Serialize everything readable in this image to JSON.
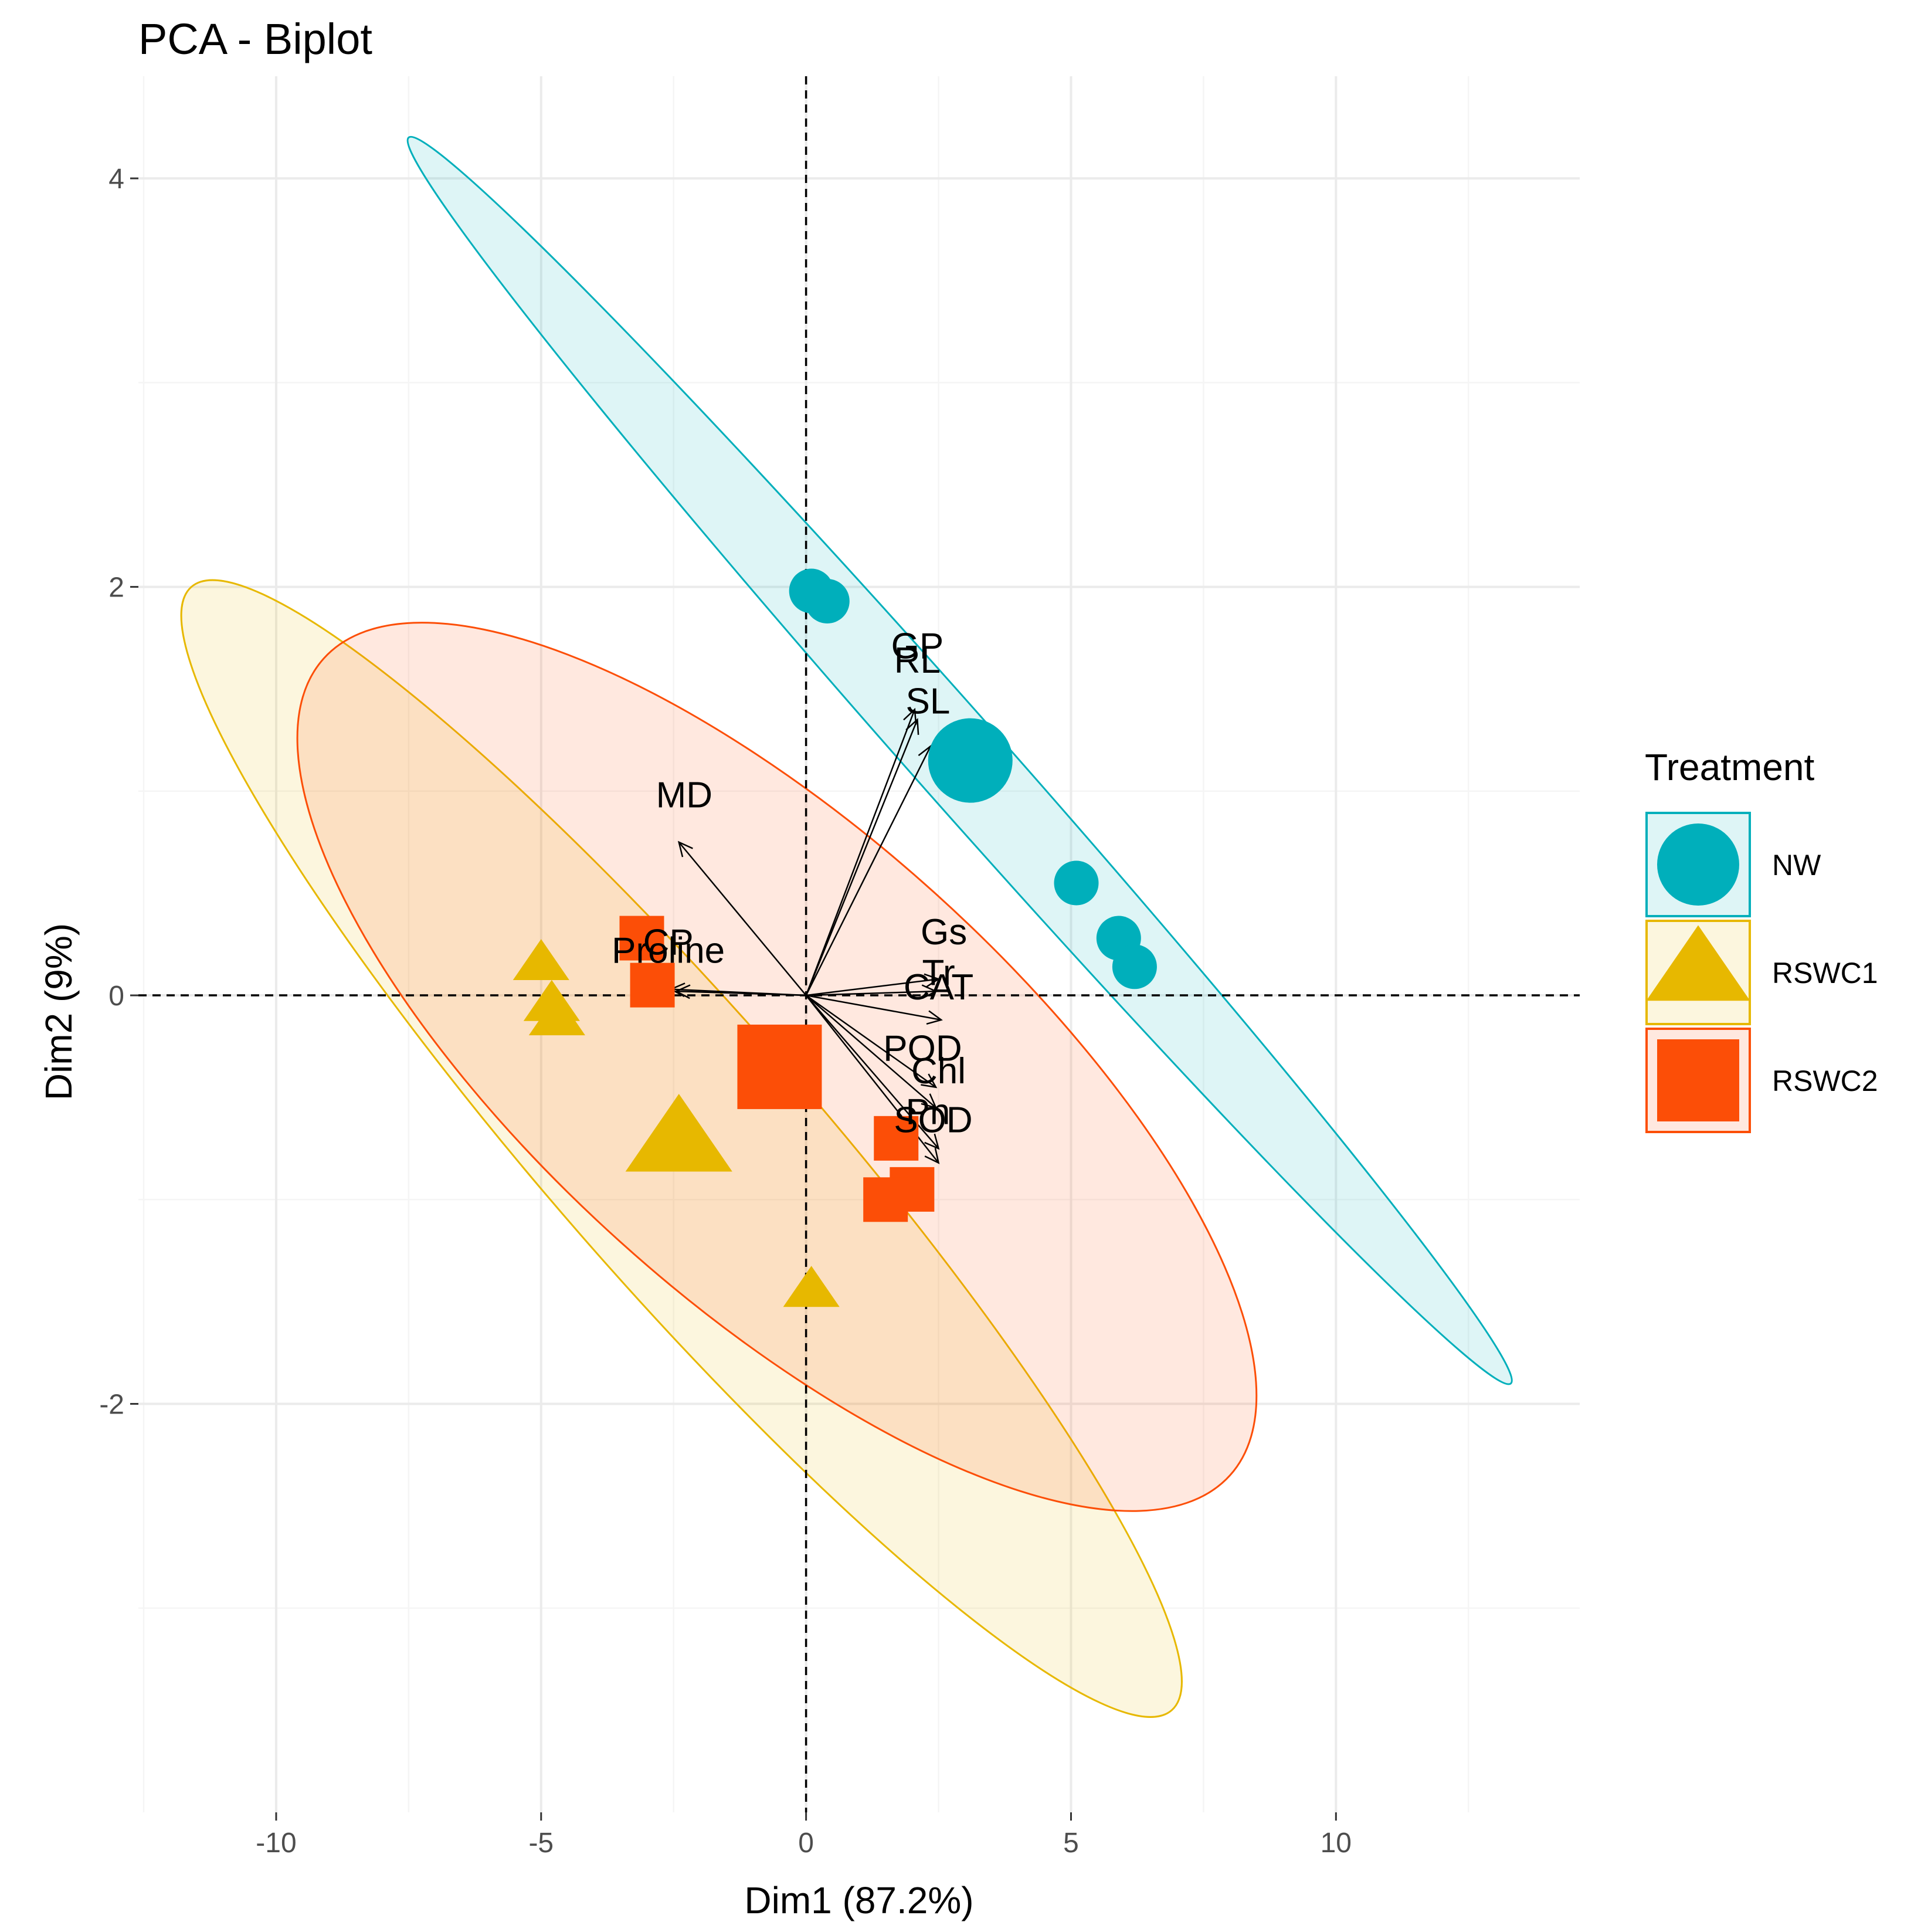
{
  "chart_data": {
    "type": "scatter",
    "title": "PCA - Biplot",
    "xlabel": "Dim1 (87.2%)",
    "ylabel": "Dim2 (9%)",
    "xlim": [
      -12.6,
      14.6
    ],
    "ylim": [
      -4.0,
      4.5
    ],
    "xticks": [
      -10,
      -5,
      0,
      5,
      10
    ],
    "xtick_labels": [
      "-10",
      "-5",
      "0",
      "5",
      "10"
    ],
    "yticks": [
      -2,
      0,
      2,
      4
    ],
    "ytick_labels": [
      "-2",
      "0",
      "2",
      "4"
    ],
    "grid": true,
    "legend": {
      "title": "Treatment",
      "position": "right",
      "entries": [
        "NW",
        "RSWC1",
        "RSWC2"
      ]
    },
    "groups": [
      {
        "name": "NW",
        "shape": "circle",
        "color": "#00AFBB",
        "points": [
          [
            0.1,
            1.98
          ],
          [
            0.4,
            1.93
          ],
          [
            5.1,
            0.55
          ],
          [
            5.9,
            0.28
          ],
          [
            6.2,
            0.14
          ]
        ],
        "centroid": [
          3.1,
          1.15
        ],
        "ellipse": {
          "end_a": [
            -7.5,
            4.2
          ],
          "end_b": [
            13.3,
            -1.9
          ],
          "half_width": 0.22
        }
      },
      {
        "name": "RSWC1",
        "shape": "triangle",
        "color": "#E7B800",
        "points": [
          [
            -5.0,
            0.15
          ],
          [
            -4.8,
            -0.05
          ],
          [
            -4.7,
            -0.12
          ],
          [
            0.1,
            -1.45
          ]
        ],
        "centroid": [
          -2.4,
          -0.72
        ],
        "ellipse": {
          "end_a": [
            -11.6,
            2.0
          ],
          "end_b": [
            6.9,
            -3.5
          ],
          "half_width": 0.65
        }
      },
      {
        "name": "RSWC2",
        "shape": "square",
        "color": "#FC4E07",
        "points": [
          [
            -3.1,
            0.28
          ],
          [
            -2.9,
            0.05
          ],
          [
            1.7,
            -0.7
          ],
          [
            2.0,
            -0.95
          ],
          [
            1.5,
            -1.0
          ]
        ],
        "centroid": [
          -0.5,
          -0.35
        ],
        "ellipse": {
          "end_a": [
            -9.1,
            1.65
          ],
          "end_b": [
            8.0,
            -2.35
          ],
          "half_width": 1.15
        }
      }
    ],
    "variables": [
      {
        "name": "GP",
        "x": 2.05,
        "y": 1.4,
        "label_x": 2.1,
        "label_y": 1.65
      },
      {
        "name": "RL",
        "x": 2.1,
        "y": 1.35,
        "label_x": 2.1,
        "label_y": 1.58
      },
      {
        "name": "SL",
        "x": 2.35,
        "y": 1.22,
        "label_x": 2.3,
        "label_y": 1.38
      },
      {
        "name": "MD",
        "x": -2.4,
        "y": 0.75,
        "label_x": -2.3,
        "label_y": 0.92
      },
      {
        "name": "CP",
        "x": -2.55,
        "y": 0.03,
        "label_x": -2.6,
        "label_y": 0.2
      },
      {
        "name": "Proline",
        "x": -2.45,
        "y": 0.02,
        "label_x": -2.6,
        "label_y": 0.16
      },
      {
        "name": "Gs",
        "x": 2.5,
        "y": 0.08,
        "label_x": 2.6,
        "label_y": 0.25
      },
      {
        "name": "Tr",
        "x": 2.45,
        "y": 0.02,
        "label_x": 2.5,
        "label_y": 0.05
      },
      {
        "name": "CAT",
        "x": 2.55,
        "y": -0.12,
        "label_x": 2.5,
        "label_y": -0.02
      },
      {
        "name": "POD",
        "x": 2.45,
        "y": -0.45,
        "label_x": 2.2,
        "label_y": -0.32
      },
      {
        "name": "Chl",
        "x": 2.45,
        "y": -0.55,
        "label_x": 2.5,
        "label_y": -0.43
      },
      {
        "name": "Pn",
        "x": 2.5,
        "y": -0.75,
        "label_x": 2.3,
        "label_y": -0.63
      },
      {
        "name": "SOD",
        "x": 2.5,
        "y": -0.82,
        "label_x": 2.4,
        "label_y": -0.67
      }
    ]
  }
}
